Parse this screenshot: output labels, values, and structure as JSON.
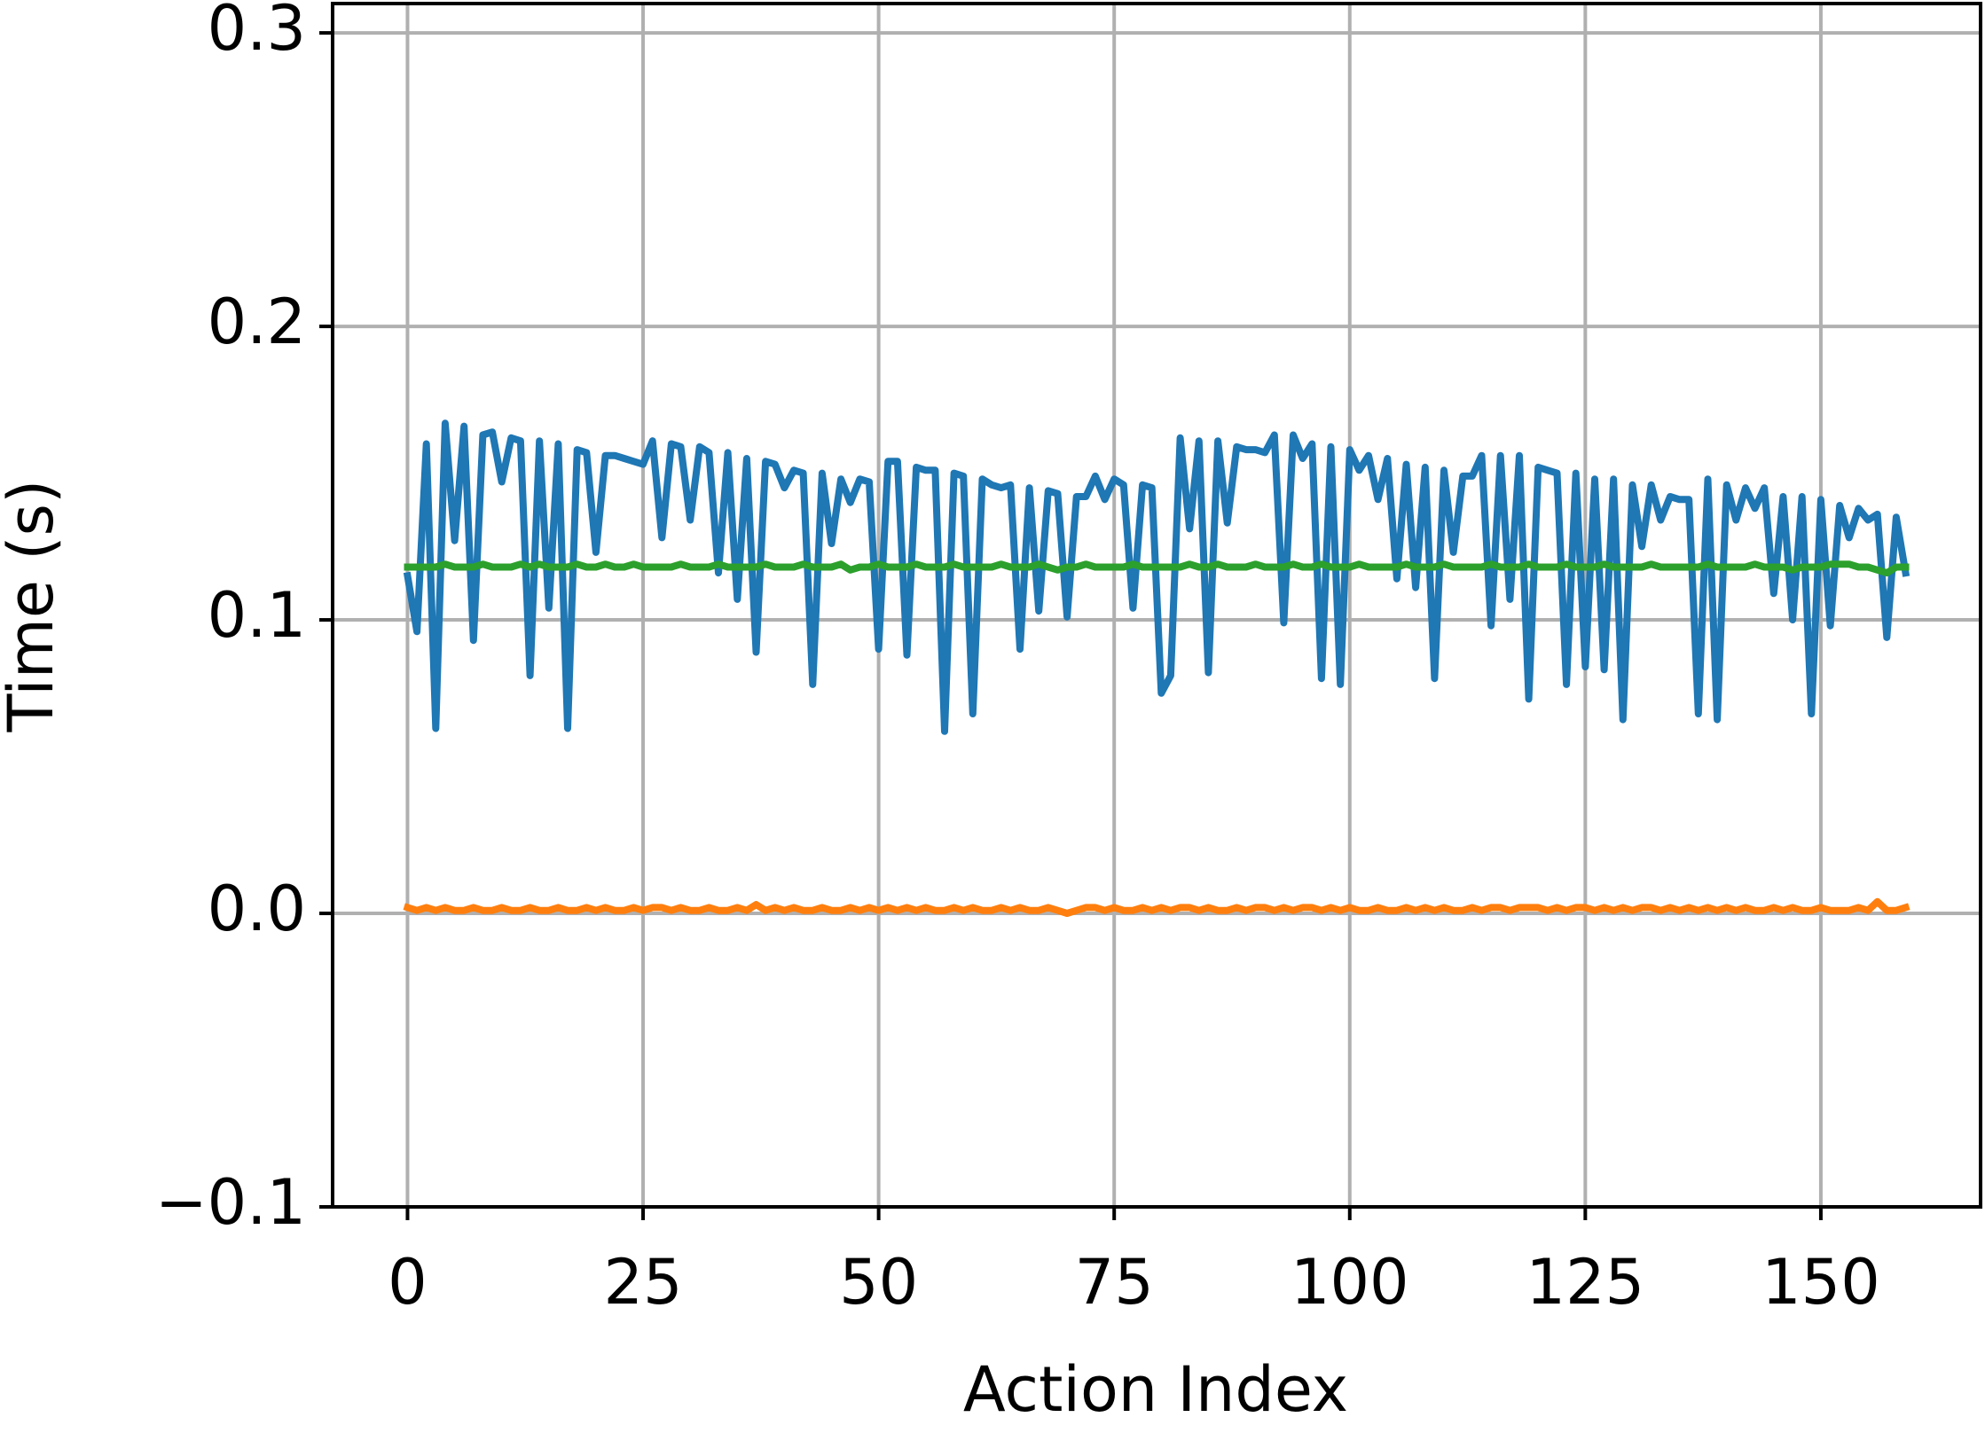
{
  "chart_data": {
    "type": "line",
    "x_label": "Action Index",
    "y_label": "Time (s)",
    "x": [
      0,
      1,
      2,
      3,
      4,
      5,
      6,
      7,
      8,
      9,
      10,
      11,
      12,
      13,
      14,
      15,
      16,
      17,
      18,
      19,
      20,
      21,
      22,
      23,
      24,
      25,
      26,
      27,
      28,
      29,
      30,
      31,
      32,
      33,
      34,
      35,
      36,
      37,
      38,
      39,
      40,
      41,
      42,
      43,
      44,
      45,
      46,
      47,
      48,
      49,
      50,
      51,
      52,
      53,
      54,
      55,
      56,
      57,
      58,
      59,
      60,
      61,
      62,
      63,
      64,
      65,
      66,
      67,
      68,
      69,
      70,
      71,
      72,
      73,
      74,
      75,
      76,
      77,
      78,
      79,
      80,
      81,
      82,
      83,
      84,
      85,
      86,
      87,
      88,
      89,
      90,
      91,
      92,
      93,
      94,
      95,
      96,
      97,
      98,
      99,
      100,
      101,
      102,
      103,
      104,
      105,
      106,
      107,
      108,
      109,
      110,
      111,
      112,
      113,
      114,
      115,
      116,
      117,
      118,
      119,
      120,
      121,
      122,
      123,
      124,
      125,
      126,
      127,
      128,
      129,
      130,
      131,
      132,
      133,
      134,
      135,
      136,
      137,
      138,
      139,
      140,
      141,
      142,
      143,
      144,
      145,
      146,
      147,
      148,
      149,
      150,
      151,
      152,
      153,
      154,
      155,
      156,
      157,
      158,
      159
    ],
    "series": [
      {
        "color": "#1f77b4",
        "values": [
          0.115,
          0.096,
          0.16,
          0.063,
          0.167,
          0.127,
          0.166,
          0.093,
          0.163,
          0.164,
          0.147,
          0.162,
          0.161,
          0.081,
          0.161,
          0.104,
          0.16,
          0.063,
          0.158,
          0.157,
          0.123,
          0.156,
          0.156,
          0.155,
          0.154,
          0.153,
          0.161,
          0.128,
          0.16,
          0.159,
          0.134,
          0.159,
          0.157,
          0.116,
          0.157,
          0.107,
          0.155,
          0.089,
          0.154,
          0.153,
          0.145,
          0.151,
          0.15,
          0.078,
          0.15,
          0.126,
          0.148,
          0.14,
          0.148,
          0.147,
          0.09,
          0.154,
          0.154,
          0.088,
          0.152,
          0.151,
          0.151,
          0.062,
          0.15,
          0.149,
          0.068,
          0.148,
          0.146,
          0.145,
          0.146,
          0.09,
          0.145,
          0.103,
          0.144,
          0.143,
          0.101,
          0.142,
          0.142,
          0.149,
          0.141,
          0.148,
          0.146,
          0.104,
          0.146,
          0.145,
          0.075,
          0.081,
          0.162,
          0.131,
          0.161,
          0.082,
          0.161,
          0.133,
          0.159,
          0.158,
          0.158,
          0.157,
          0.163,
          0.099,
          0.163,
          0.155,
          0.16,
          0.08,
          0.159,
          0.078,
          0.158,
          0.151,
          0.156,
          0.141,
          0.155,
          0.114,
          0.153,
          0.111,
          0.152,
          0.08,
          0.151,
          0.123,
          0.149,
          0.149,
          0.156,
          0.098,
          0.156,
          0.107,
          0.156,
          0.073,
          0.152,
          0.151,
          0.15,
          0.078,
          0.15,
          0.084,
          0.148,
          0.083,
          0.148,
          0.066,
          0.146,
          0.125,
          0.146,
          0.134,
          0.142,
          0.141,
          0.141,
          0.068,
          0.148,
          0.066,
          0.146,
          0.134,
          0.145,
          0.138,
          0.145,
          0.109,
          0.142,
          0.1,
          0.142,
          0.068,
          0.141,
          0.098,
          0.139,
          0.128,
          0.138,
          0.134,
          0.136,
          0.094,
          0.135,
          0.116
        ]
      },
      {
        "color": "#ff7f0e",
        "values": [
          0.002,
          0.001,
          0.002,
          0.001,
          0.002,
          0.001,
          0.001,
          0.002,
          0.001,
          0.001,
          0.002,
          0.001,
          0.001,
          0.002,
          0.001,
          0.001,
          0.002,
          0.001,
          0.001,
          0.002,
          0.001,
          0.002,
          0.001,
          0.001,
          0.002,
          0.001,
          0.002,
          0.002,
          0.001,
          0.002,
          0.001,
          0.001,
          0.002,
          0.001,
          0.001,
          0.002,
          0.001,
          0.003,
          0.001,
          0.002,
          0.001,
          0.002,
          0.001,
          0.001,
          0.002,
          0.001,
          0.001,
          0.002,
          0.001,
          0.002,
          0.001,
          0.002,
          0.001,
          0.002,
          0.001,
          0.002,
          0.001,
          0.001,
          0.002,
          0.001,
          0.002,
          0.001,
          0.001,
          0.002,
          0.001,
          0.002,
          0.001,
          0.001,
          0.002,
          0.001,
          0.0,
          0.001,
          0.002,
          0.002,
          0.001,
          0.002,
          0.001,
          0.001,
          0.002,
          0.001,
          0.002,
          0.001,
          0.002,
          0.002,
          0.001,
          0.002,
          0.001,
          0.001,
          0.002,
          0.001,
          0.002,
          0.002,
          0.001,
          0.002,
          0.001,
          0.002,
          0.002,
          0.001,
          0.002,
          0.001,
          0.002,
          0.001,
          0.001,
          0.002,
          0.001,
          0.001,
          0.002,
          0.001,
          0.002,
          0.001,
          0.002,
          0.001,
          0.001,
          0.002,
          0.001,
          0.002,
          0.002,
          0.001,
          0.002,
          0.002,
          0.002,
          0.001,
          0.002,
          0.001,
          0.002,
          0.002,
          0.001,
          0.002,
          0.001,
          0.002,
          0.001,
          0.002,
          0.002,
          0.001,
          0.002,
          0.001,
          0.002,
          0.001,
          0.002,
          0.001,
          0.002,
          0.001,
          0.002,
          0.001,
          0.001,
          0.002,
          0.001,
          0.002,
          0.001,
          0.001,
          0.002,
          0.001,
          0.001,
          0.001,
          0.002,
          0.001,
          0.004,
          0.001,
          0.001,
          0.002
        ]
      },
      {
        "color": "#2ca02c",
        "values": [
          0.118,
          0.118,
          0.118,
          0.118,
          0.119,
          0.118,
          0.118,
          0.118,
          0.119,
          0.118,
          0.118,
          0.118,
          0.119,
          0.118,
          0.119,
          0.118,
          0.118,
          0.118,
          0.119,
          0.118,
          0.118,
          0.119,
          0.118,
          0.118,
          0.119,
          0.118,
          0.118,
          0.118,
          0.118,
          0.119,
          0.118,
          0.118,
          0.118,
          0.119,
          0.118,
          0.118,
          0.118,
          0.118,
          0.119,
          0.118,
          0.118,
          0.118,
          0.119,
          0.118,
          0.118,
          0.118,
          0.119,
          0.117,
          0.118,
          0.118,
          0.119,
          0.118,
          0.118,
          0.118,
          0.119,
          0.118,
          0.118,
          0.118,
          0.119,
          0.118,
          0.118,
          0.118,
          0.118,
          0.119,
          0.118,
          0.118,
          0.118,
          0.119,
          0.118,
          0.117,
          0.118,
          0.118,
          0.119,
          0.118,
          0.118,
          0.118,
          0.118,
          0.119,
          0.118,
          0.118,
          0.118,
          0.118,
          0.118,
          0.119,
          0.118,
          0.118,
          0.119,
          0.118,
          0.118,
          0.118,
          0.119,
          0.118,
          0.118,
          0.118,
          0.119,
          0.118,
          0.118,
          0.119,
          0.118,
          0.118,
          0.118,
          0.119,
          0.118,
          0.118,
          0.118,
          0.118,
          0.119,
          0.118,
          0.118,
          0.118,
          0.119,
          0.118,
          0.118,
          0.118,
          0.118,
          0.119,
          0.118,
          0.118,
          0.118,
          0.119,
          0.118,
          0.118,
          0.118,
          0.119,
          0.118,
          0.118,
          0.118,
          0.119,
          0.118,
          0.118,
          0.118,
          0.118,
          0.119,
          0.118,
          0.118,
          0.118,
          0.118,
          0.118,
          0.119,
          0.118,
          0.118,
          0.118,
          0.118,
          0.119,
          0.118,
          0.118,
          0.118,
          0.117,
          0.118,
          0.118,
          0.118,
          0.119,
          0.119,
          0.119,
          0.118,
          0.118,
          0.117,
          0.116,
          0.118,
          0.118
        ]
      }
    ],
    "xlim": [
      -7.95,
      166.95
    ],
    "ylim": [
      -0.1,
      0.31
    ],
    "xticks": [
      0,
      25,
      50,
      75,
      100,
      125,
      150
    ],
    "yticks": [
      {
        "value": -0.1,
        "label": "−0.1"
      },
      {
        "value": 0,
        "label": "0.0"
      },
      0.1,
      0.2,
      0.3
    ],
    "grid": true
  }
}
